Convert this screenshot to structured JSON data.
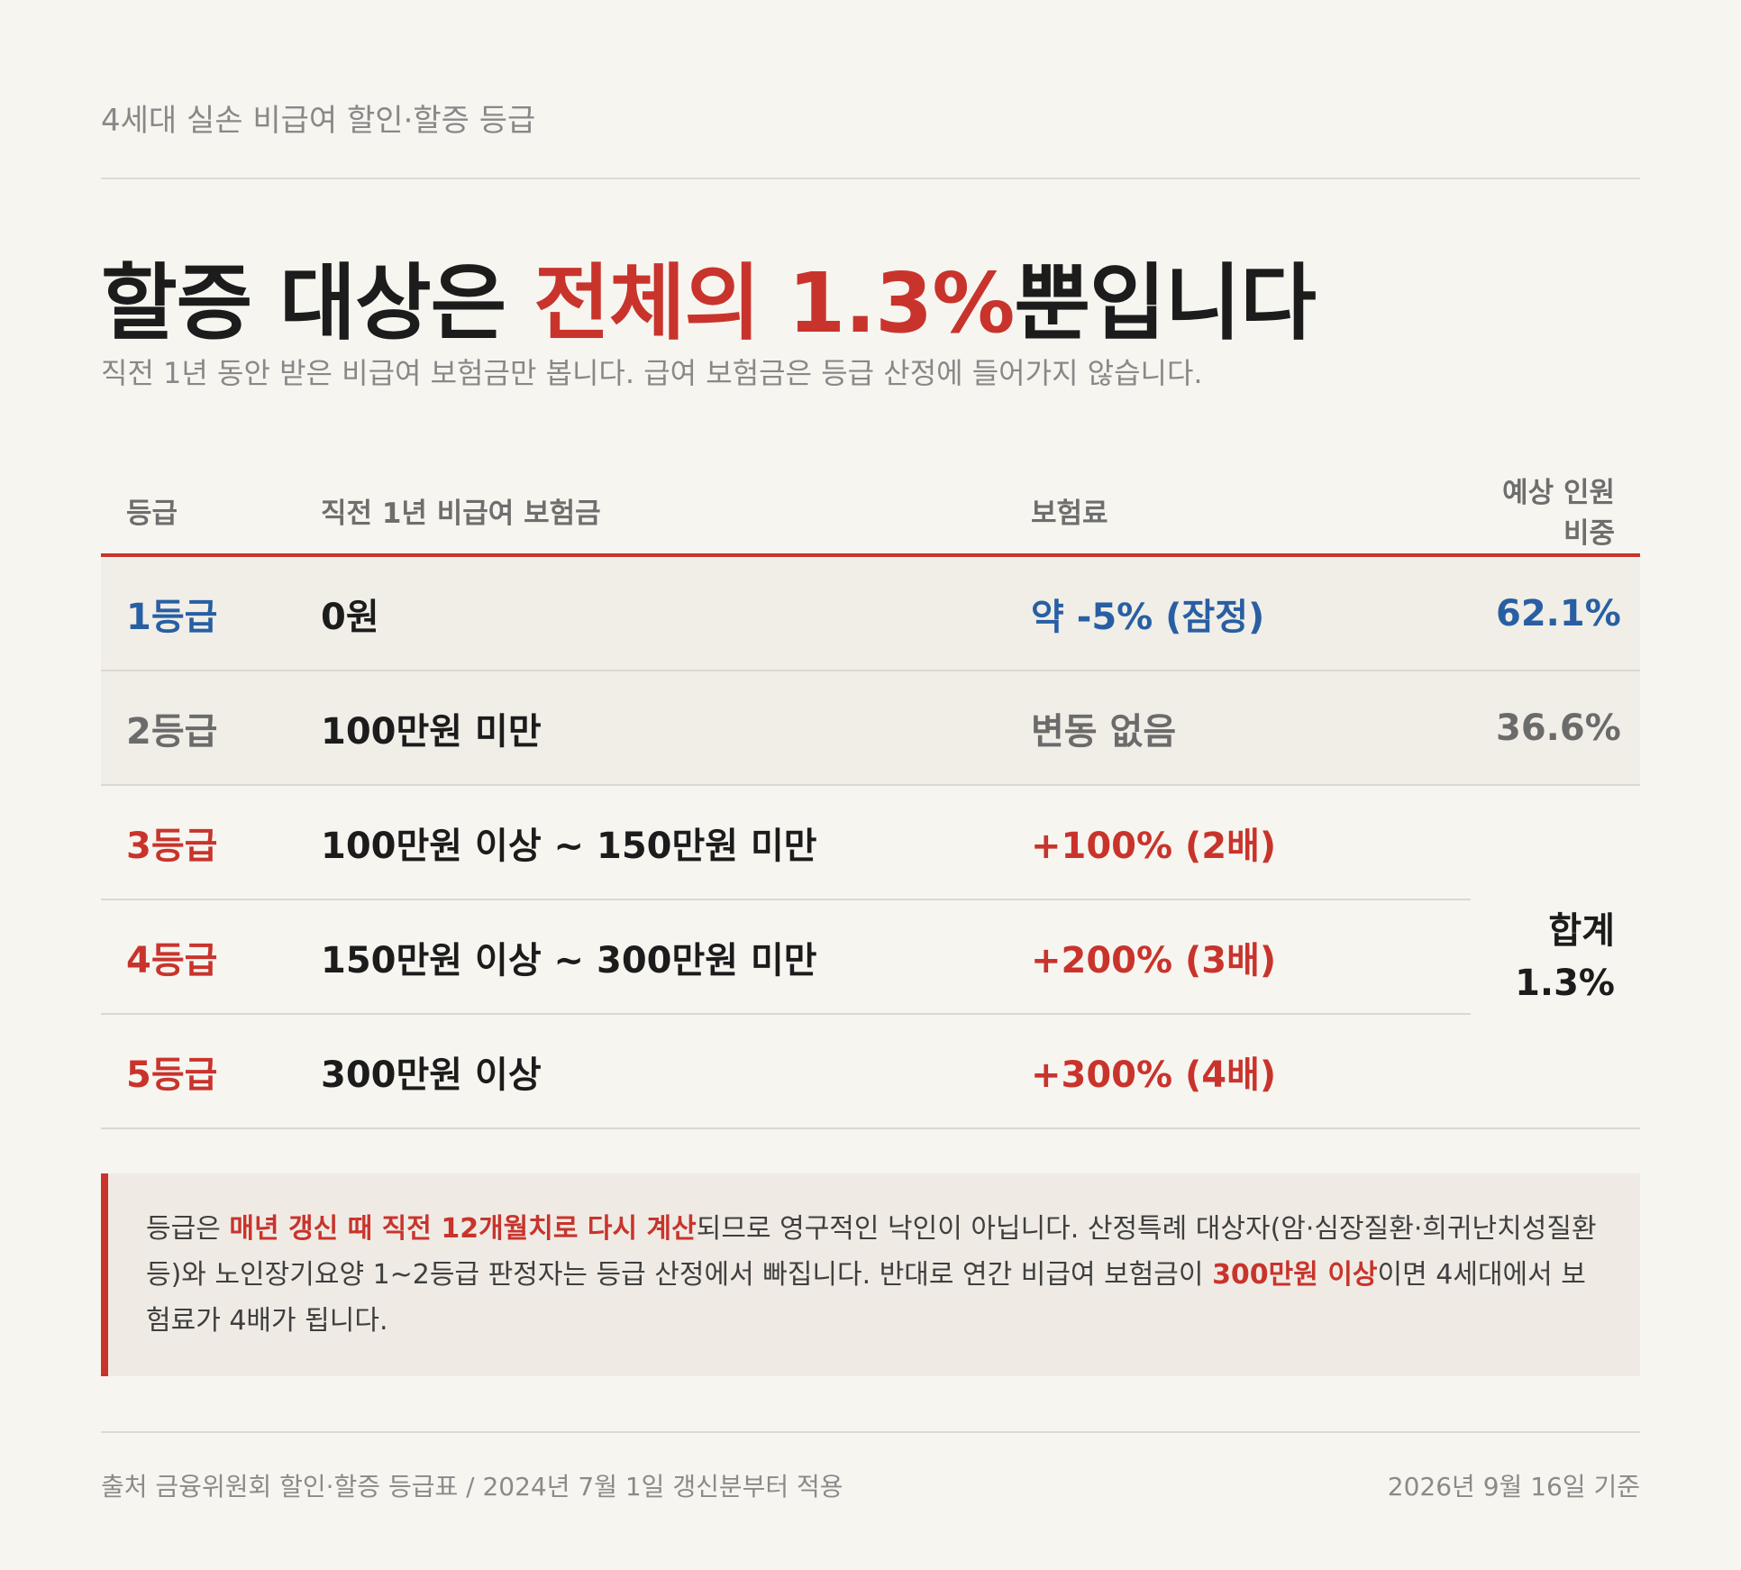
{
  "header": {
    "eyebrow": "4세대 실손 비급여 할인·할증 등급",
    "headline_prefix": "할증 대상은 ",
    "headline_highlight": "전체의 1.3%",
    "headline_suffix": "뿐입니다",
    "subhead": "직전 1년 동안 받은 비급여 보험금만 봅니다. 급여 보험금은 등급 산정에 들어가지 않습니다."
  },
  "table": {
    "columns": [
      "등급",
      "직전 1년 비급여 보험금",
      "보험료",
      "예상 인원 비중"
    ],
    "rows": [
      {
        "grade": "1등급",
        "claims": "0원",
        "premium": "약 -5% (잠정)",
        "share": "62.1%"
      },
      {
        "grade": "2등급",
        "claims": "100만원 미만",
        "premium": "변동 없음",
        "share": "36.6%"
      },
      {
        "grade": "3등급",
        "claims": "100만원 이상 ~ 150만원 미만",
        "premium": "+100% (2배)"
      },
      {
        "grade": "4등급",
        "claims": "150만원 이상 ~ 300만원 미만",
        "premium": "+200% (3배)"
      },
      {
        "grade": "5등급",
        "claims": "300만원 이상",
        "premium": "+300% (4배)"
      }
    ],
    "sum_label": "합계",
    "sum_value": "1.3%"
  },
  "note": {
    "p1": "등급은 ",
    "em1": "매년 갱신 때 직전 12개월치로 다시 계산",
    "p2": "되므로 영구적인 낙인이 아닙니다. 산정특례 대상자(암·심장질환·희귀난치성질환 등)와 노인장기요양 1~2등급 판정자는 등급 산정에서 빠집니다. 반대로 연간 비급여 보험금이 ",
    "em2": "300만원 이상",
    "p3": "이면 4세대에서 보험료가 4배가 됩니다."
  },
  "footer": {
    "source": "출처 금융위원회 할인·할증 등급표 / 2024년 7월 1일 갱신분부터 적용",
    "date": "2026년 9월 16일 기준"
  },
  "colors": {
    "accent_red": "#c8342c",
    "accent_blue": "#285fa3",
    "background": "#f7f5f0"
  }
}
